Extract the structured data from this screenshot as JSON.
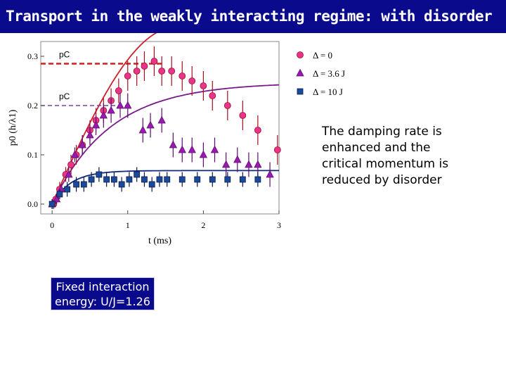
{
  "slide": {
    "title": "Transport in the weakly interacting regime: with disorder",
    "note": "The damping rate is enhanced and the critical momentum is reduced by disorder",
    "box_text": "Fixed interaction energy: U/J=1.26"
  },
  "colors": {
    "title_bg": "#0a0a8c",
    "series_0": "#e8348c",
    "series_36": "#9a1ab0",
    "series_10": "#1a4a9a",
    "fit_0": "#d0202a",
    "fit_36": "#7a1a8a",
    "fit_10": "#102a7a",
    "pc_0": "#d02020",
    "pc_36": "#8040a0"
  },
  "chart_data": {
    "type": "scatter",
    "xlabel": "t (ms)",
    "ylabel": "p0 (h/λ1)",
    "xlim": [
      -0.15,
      3.0
    ],
    "ylim": [
      -0.02,
      0.33
    ],
    "xticks": [
      "0",
      "1",
      "2",
      "3"
    ],
    "yticks": [
      "0.0",
      "0.1",
      "0.2",
      "0.3"
    ],
    "legend_position": "right",
    "pc_lines": [
      {
        "label": "pC",
        "y": 0.285,
        "series": "0"
      },
      {
        "label": "pC",
        "y": 0.2,
        "series": "36"
      }
    ],
    "series": [
      {
        "name": "Δ = 0",
        "marker": "circle",
        "x": [
          0.02,
          0.05,
          0.1,
          0.18,
          0.25,
          0.32,
          0.4,
          0.5,
          0.58,
          0.68,
          0.78,
          0.88,
          1.0,
          1.12,
          1.22,
          1.35,
          1.45,
          1.58,
          1.72,
          1.85,
          2.0,
          2.12,
          2.32,
          2.52,
          2.72,
          2.98
        ],
        "y": [
          0.0,
          0.01,
          0.03,
          0.06,
          0.08,
          0.1,
          0.12,
          0.15,
          0.17,
          0.19,
          0.21,
          0.23,
          0.26,
          0.27,
          0.28,
          0.29,
          0.27,
          0.27,
          0.26,
          0.25,
          0.24,
          0.22,
          0.2,
          0.18,
          0.15,
          0.11
        ],
        "err": [
          0.01,
          0.01,
          0.015,
          0.015,
          0.02,
          0.02,
          0.02,
          0.02,
          0.025,
          0.025,
          0.025,
          0.025,
          0.03,
          0.03,
          0.03,
          0.03,
          0.03,
          0.03,
          0.03,
          0.03,
          0.03,
          0.03,
          0.03,
          0.03,
          0.03,
          0.03
        ]
      },
      {
        "name": "Δ = 3.6 J",
        "marker": "triangle",
        "x": [
          0.0,
          0.06,
          0.12,
          0.22,
          0.3,
          0.4,
          0.5,
          0.58,
          0.68,
          0.78,
          0.9,
          1.0,
          1.2,
          1.3,
          1.45,
          1.6,
          1.72,
          1.85,
          2.0,
          2.15,
          2.3,
          2.45,
          2.6,
          2.72,
          2.88
        ],
        "y": [
          0.0,
          0.01,
          0.03,
          0.06,
          0.1,
          0.12,
          0.14,
          0.16,
          0.18,
          0.19,
          0.2,
          0.2,
          0.15,
          0.16,
          0.17,
          0.12,
          0.11,
          0.11,
          0.1,
          0.11,
          0.08,
          0.09,
          0.08,
          0.08,
          0.06
        ],
        "err": [
          0.01,
          0.01,
          0.01,
          0.015,
          0.015,
          0.02,
          0.02,
          0.02,
          0.025,
          0.025,
          0.025,
          0.025,
          0.025,
          0.025,
          0.025,
          0.025,
          0.025,
          0.025,
          0.025,
          0.025,
          0.025,
          0.025,
          0.025,
          0.025,
          0.025
        ]
      },
      {
        "name": "Δ = 10 J",
        "marker": "square",
        "x": [
          0.0,
          0.1,
          0.2,
          0.32,
          0.42,
          0.52,
          0.62,
          0.72,
          0.82,
          0.92,
          1.02,
          1.12,
          1.22,
          1.32,
          1.42,
          1.52,
          1.72,
          1.92,
          2.12,
          2.32,
          2.52,
          2.72
        ],
        "y": [
          0.0,
          0.02,
          0.03,
          0.04,
          0.04,
          0.05,
          0.06,
          0.05,
          0.05,
          0.04,
          0.05,
          0.06,
          0.05,
          0.04,
          0.05,
          0.05,
          0.05,
          0.05,
          0.05,
          0.05,
          0.05,
          0.05
        ],
        "err": [
          0.01,
          0.01,
          0.015,
          0.015,
          0.015,
          0.015,
          0.015,
          0.015,
          0.015,
          0.015,
          0.015,
          0.015,
          0.015,
          0.015,
          0.015,
          0.015,
          0.015,
          0.015,
          0.015,
          0.015,
          0.015,
          0.015
        ]
      }
    ]
  }
}
